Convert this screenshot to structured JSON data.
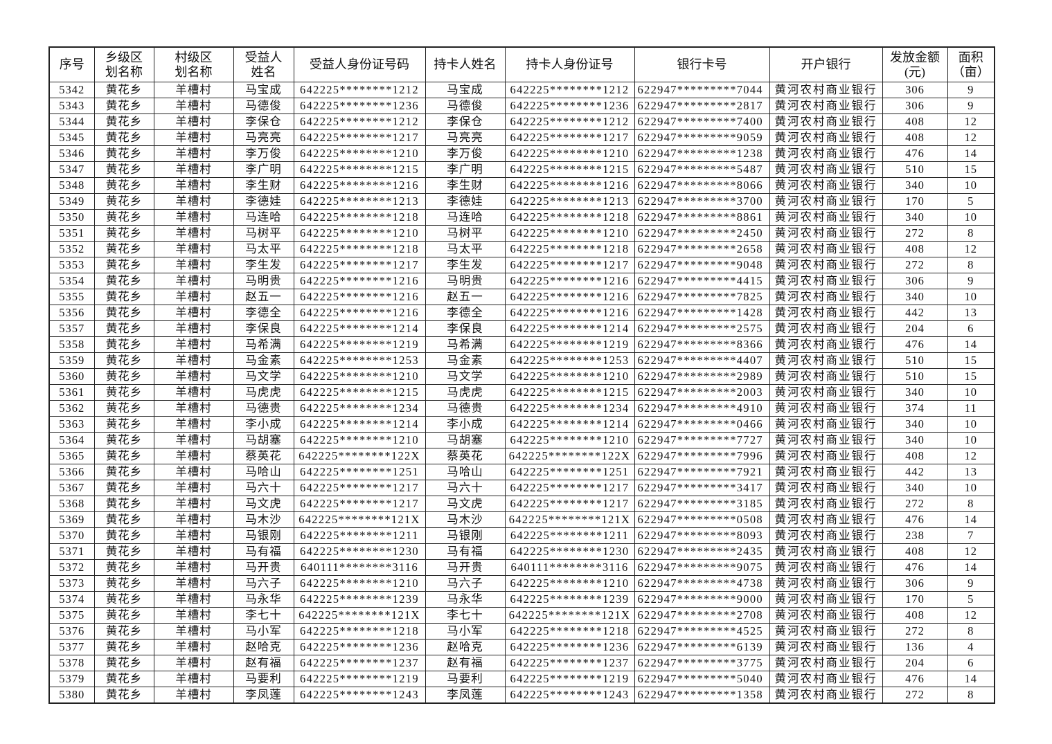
{
  "headers": [
    "序号",
    "乡级区\n划名称",
    "村级区\n划名称",
    "受益人\n姓名",
    "受益人身份证号码",
    "持卡人姓名",
    "持卡人身份证号",
    "银行卡号",
    "开户银行",
    "发放金额\n(元)",
    "面积\n（亩）"
  ],
  "rows": [
    [
      "5342",
      "黄花乡",
      "羊槽村",
      "马宝成",
      "642225********1212",
      "马宝成",
      "642225********1212",
      "622947*********7044",
      "黄河农村商业银行",
      "306",
      "9"
    ],
    [
      "5343",
      "黄花乡",
      "羊槽村",
      "马德俊",
      "642225********1236",
      "马德俊",
      "642225********1236",
      "622947*********2817",
      "黄河农村商业银行",
      "306",
      "9"
    ],
    [
      "5344",
      "黄花乡",
      "羊槽村",
      "李保仓",
      "642225********1212",
      "李保仓",
      "642225********1212",
      "622947*********7400",
      "黄河农村商业银行",
      "408",
      "12"
    ],
    [
      "5345",
      "黄花乡",
      "羊槽村",
      "马亮亮",
      "642225********1217",
      "马亮亮",
      "642225********1217",
      "622947*********9059",
      "黄河农村商业银行",
      "408",
      "12"
    ],
    [
      "5346",
      "黄花乡",
      "羊槽村",
      "李万俊",
      "642225********1210",
      "李万俊",
      "642225********1210",
      "622947*********1238",
      "黄河农村商业银行",
      "476",
      "14"
    ],
    [
      "5347",
      "黄花乡",
      "羊槽村",
      "李广明",
      "642225********1215",
      "李广明",
      "642225********1215",
      "622947*********5487",
      "黄河农村商业银行",
      "510",
      "15"
    ],
    [
      "5348",
      "黄花乡",
      "羊槽村",
      "李生财",
      "642225********1216",
      "李生财",
      "642225********1216",
      "622947*********8066",
      "黄河农村商业银行",
      "340",
      "10"
    ],
    [
      "5349",
      "黄花乡",
      "羊槽村",
      "李德娃",
      "642225********1213",
      "李德娃",
      "642225********1213",
      "622947*********3700",
      "黄河农村商业银行",
      "170",
      "5"
    ],
    [
      "5350",
      "黄花乡",
      "羊槽村",
      "马连哈",
      "642225********1218",
      "马连哈",
      "642225********1218",
      "622947*********8861",
      "黄河农村商业银行",
      "340",
      "10"
    ],
    [
      "5351",
      "黄花乡",
      "羊槽村",
      "马树平",
      "642225********1210",
      "马树平",
      "642225********1210",
      "622947*********2450",
      "黄河农村商业银行",
      "272",
      "8"
    ],
    [
      "5352",
      "黄花乡",
      "羊槽村",
      "马太平",
      "642225********1218",
      "马太平",
      "642225********1218",
      "622947*********2658",
      "黄河农村商业银行",
      "408",
      "12"
    ],
    [
      "5353",
      "黄花乡",
      "羊槽村",
      "李生发",
      "642225********1217",
      "李生发",
      "642225********1217",
      "622947*********9048",
      "黄河农村商业银行",
      "272",
      "8"
    ],
    [
      "5354",
      "黄花乡",
      "羊槽村",
      "马明贵",
      "642225********1216",
      "马明贵",
      "642225********1216",
      "622947*********4415",
      "黄河农村商业银行",
      "306",
      "9"
    ],
    [
      "5355",
      "黄花乡",
      "羊槽村",
      "赵五一",
      "642225********1216",
      "赵五一",
      "642225********1216",
      "622947*********7825",
      "黄河农村商业银行",
      "340",
      "10"
    ],
    [
      "5356",
      "黄花乡",
      "羊槽村",
      "李德全",
      "642225********1216",
      "李德全",
      "642225********1216",
      "622947*********1428",
      "黄河农村商业银行",
      "442",
      "13"
    ],
    [
      "5357",
      "黄花乡",
      "羊槽村",
      "李保良",
      "642225********1214",
      "李保良",
      "642225********1214",
      "622947*********2575",
      "黄河农村商业银行",
      "204",
      "6"
    ],
    [
      "5358",
      "黄花乡",
      "羊槽村",
      "马希满",
      "642225********1219",
      "马希满",
      "642225********1219",
      "622947*********8366",
      "黄河农村商业银行",
      "476",
      "14"
    ],
    [
      "5359",
      "黄花乡",
      "羊槽村",
      "马金素",
      "642225********1253",
      "马金素",
      "642225********1253",
      "622947*********4407",
      "黄河农村商业银行",
      "510",
      "15"
    ],
    [
      "5360",
      "黄花乡",
      "羊槽村",
      "马文学",
      "642225********1210",
      "马文学",
      "642225********1210",
      "622947*********2989",
      "黄河农村商业银行",
      "510",
      "15"
    ],
    [
      "5361",
      "黄花乡",
      "羊槽村",
      "马虎虎",
      "642225********1215",
      "马虎虎",
      "642225********1215",
      "622947*********2003",
      "黄河农村商业银行",
      "340",
      "10"
    ],
    [
      "5362",
      "黄花乡",
      "羊槽村",
      "马德贵",
      "642225********1234",
      "马德贵",
      "642225********1234",
      "622947*********4910",
      "黄河农村商业银行",
      "374",
      "11"
    ],
    [
      "5363",
      "黄花乡",
      "羊槽村",
      "李小成",
      "642225********1214",
      "李小成",
      "642225********1214",
      "622947*********0466",
      "黄河农村商业银行",
      "340",
      "10"
    ],
    [
      "5364",
      "黄花乡",
      "羊槽村",
      "马胡塞",
      "642225********1210",
      "马胡塞",
      "642225********1210",
      "622947*********7727",
      "黄河农村商业银行",
      "340",
      "10"
    ],
    [
      "5365",
      "黄花乡",
      "羊槽村",
      "蔡英花",
      "642225********122X",
      "蔡英花",
      "642225********122X",
      "622947*********7996",
      "黄河农村商业银行",
      "408",
      "12"
    ],
    [
      "5366",
      "黄花乡",
      "羊槽村",
      "马哈山",
      "642225********1251",
      "马哈山",
      "642225********1251",
      "622947*********7921",
      "黄河农村商业银行",
      "442",
      "13"
    ],
    [
      "5367",
      "黄花乡",
      "羊槽村",
      "马六十",
      "642225********1217",
      "马六十",
      "642225********1217",
      "622947*********3417",
      "黄河农村商业银行",
      "340",
      "10"
    ],
    [
      "5368",
      "黄花乡",
      "羊槽村",
      "马文虎",
      "642225********1217",
      "马文虎",
      "642225********1217",
      "622947*********3185",
      "黄河农村商业银行",
      "272",
      "8"
    ],
    [
      "5369",
      "黄花乡",
      "羊槽村",
      "马木沙",
      "642225********121X",
      "马木沙",
      "642225********121X",
      "622947*********0508",
      "黄河农村商业银行",
      "476",
      "14"
    ],
    [
      "5370",
      "黄花乡",
      "羊槽村",
      "马银刚",
      "642225********1211",
      "马银刚",
      "642225********1211",
      "622947*********8093",
      "黄河农村商业银行",
      "238",
      "7"
    ],
    [
      "5371",
      "黄花乡",
      "羊槽村",
      "马有福",
      "642225********1230",
      "马有福",
      "642225********1230",
      "622947*********2435",
      "黄河农村商业银行",
      "408",
      "12"
    ],
    [
      "5372",
      "黄花乡",
      "羊槽村",
      "马开贵",
      "640111********3116",
      "马开贵",
      "640111********3116",
      "622947*********9075",
      "黄河农村商业银行",
      "476",
      "14"
    ],
    [
      "5373",
      "黄花乡",
      "羊槽村",
      "马六子",
      "642225********1210",
      "马六子",
      "642225********1210",
      "622947*********4738",
      "黄河农村商业银行",
      "306",
      "9"
    ],
    [
      "5374",
      "黄花乡",
      "羊槽村",
      "马永华",
      "642225********1239",
      "马永华",
      "642225********1239",
      "622947*********9000",
      "黄河农村商业银行",
      "170",
      "5"
    ],
    [
      "5375",
      "黄花乡",
      "羊槽村",
      "李七十",
      "642225********121X",
      "李七十",
      "642225********121X",
      "622947*********2708",
      "黄河农村商业银行",
      "408",
      "12"
    ],
    [
      "5376",
      "黄花乡",
      "羊槽村",
      "马小军",
      "642225********1218",
      "马小军",
      "642225********1218",
      "622947*********4525",
      "黄河农村商业银行",
      "272",
      "8"
    ],
    [
      "5377",
      "黄花乡",
      "羊槽村",
      "赵哈克",
      "642225********1236",
      "赵哈克",
      "642225********1236",
      "622947*********6139",
      "黄河农村商业银行",
      "136",
      "4"
    ],
    [
      "5378",
      "黄花乡",
      "羊槽村",
      "赵有福",
      "642225********1237",
      "赵有福",
      "642225********1237",
      "622947*********3775",
      "黄河农村商业银行",
      "204",
      "6"
    ],
    [
      "5379",
      "黄花乡",
      "羊槽村",
      "马要利",
      "642225********1219",
      "马要利",
      "642225********1219",
      "622947*********5040",
      "黄河农村商业银行",
      "476",
      "14"
    ],
    [
      "5380",
      "黄花乡",
      "羊槽村",
      "李凤莲",
      "642225********1243",
      "李凤莲",
      "642225********1243",
      "622947*********1358",
      "黄河农村商业银行",
      "272",
      "8"
    ]
  ]
}
